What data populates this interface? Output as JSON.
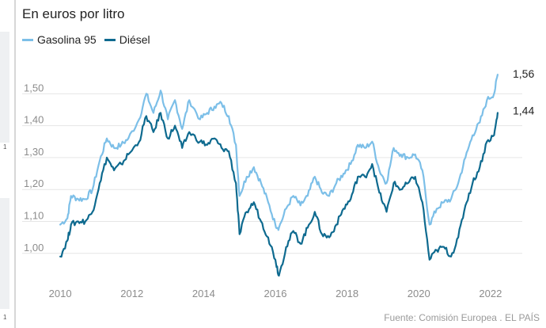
{
  "title": "En euros por litro",
  "source": "Fuente: Comisión Europea . EL PAÍS",
  "side_marks": [
    "1",
    "1"
  ],
  "chart_data": {
    "type": "line",
    "title": "En euros por litro",
    "xlabel": "",
    "ylabel": "",
    "x_ticks": [
      "2010",
      "2012",
      "2014",
      "2016",
      "2018",
      "2020",
      "2022"
    ],
    "y_ticks": [
      "1,00",
      "1,10",
      "1,20",
      "1,30",
      "1,40",
      "1,50"
    ],
    "ylim": [
      0.92,
      1.62
    ],
    "xlim": [
      2009.6,
      2022.4
    ],
    "grid": "horizontal",
    "legend": "top-left",
    "series": [
      {
        "name": "Gasolina 95",
        "color": "#7cbfe8",
        "end_label": "1,56",
        "points": [
          [
            2010.0,
            1.09
          ],
          [
            2010.2,
            1.11
          ],
          [
            2010.3,
            1.18
          ],
          [
            2010.5,
            1.17
          ],
          [
            2010.7,
            1.17
          ],
          [
            2010.9,
            1.2
          ],
          [
            2011.1,
            1.29
          ],
          [
            2011.3,
            1.36
          ],
          [
            2011.5,
            1.33
          ],
          [
            2011.7,
            1.34
          ],
          [
            2011.9,
            1.36
          ],
          [
            2012.2,
            1.42
          ],
          [
            2012.4,
            1.5
          ],
          [
            2012.6,
            1.44
          ],
          [
            2012.8,
            1.51
          ],
          [
            2013.0,
            1.42
          ],
          [
            2013.2,
            1.48
          ],
          [
            2013.4,
            1.39
          ],
          [
            2013.6,
            1.48
          ],
          [
            2013.9,
            1.42
          ],
          [
            2014.1,
            1.44
          ],
          [
            2014.3,
            1.46
          ],
          [
            2014.5,
            1.47
          ],
          [
            2014.7,
            1.43
          ],
          [
            2014.9,
            1.34
          ],
          [
            2015.0,
            1.18
          ],
          [
            2015.2,
            1.24
          ],
          [
            2015.4,
            1.27
          ],
          [
            2015.6,
            1.22
          ],
          [
            2015.8,
            1.16
          ],
          [
            2016.0,
            1.09
          ],
          [
            2016.1,
            1.08
          ],
          [
            2016.3,
            1.14
          ],
          [
            2016.5,
            1.18
          ],
          [
            2016.7,
            1.15
          ],
          [
            2016.9,
            1.18
          ],
          [
            2017.1,
            1.24
          ],
          [
            2017.3,
            1.19
          ],
          [
            2017.5,
            1.18
          ],
          [
            2017.7,
            1.22
          ],
          [
            2017.9,
            1.25
          ],
          [
            2018.1,
            1.28
          ],
          [
            2018.3,
            1.34
          ],
          [
            2018.5,
            1.33
          ],
          [
            2018.7,
            1.35
          ],
          [
            2018.9,
            1.26
          ],
          [
            2019.1,
            1.22
          ],
          [
            2019.3,
            1.33
          ],
          [
            2019.5,
            1.31
          ],
          [
            2019.7,
            1.3
          ],
          [
            2019.9,
            1.31
          ],
          [
            2020.1,
            1.26
          ],
          [
            2020.3,
            1.09
          ],
          [
            2020.5,
            1.14
          ],
          [
            2020.7,
            1.16
          ],
          [
            2020.9,
            1.17
          ],
          [
            2021.1,
            1.22
          ],
          [
            2021.3,
            1.3
          ],
          [
            2021.5,
            1.37
          ],
          [
            2021.7,
            1.41
          ],
          [
            2021.9,
            1.48
          ],
          [
            2022.1,
            1.5
          ],
          [
            2022.2,
            1.56
          ]
        ]
      },
      {
        "name": "Diésel",
        "color": "#0e6a8f",
        "end_label": "1,44",
        "points": [
          [
            2010.0,
            0.99
          ],
          [
            2010.2,
            1.04
          ],
          [
            2010.3,
            1.09
          ],
          [
            2010.5,
            1.1
          ],
          [
            2010.7,
            1.1
          ],
          [
            2010.9,
            1.13
          ],
          [
            2011.1,
            1.22
          ],
          [
            2011.3,
            1.3
          ],
          [
            2011.5,
            1.26
          ],
          [
            2011.7,
            1.28
          ],
          [
            2011.9,
            1.31
          ],
          [
            2012.2,
            1.35
          ],
          [
            2012.4,
            1.43
          ],
          [
            2012.6,
            1.38
          ],
          [
            2012.8,
            1.44
          ],
          [
            2013.0,
            1.36
          ],
          [
            2013.2,
            1.4
          ],
          [
            2013.4,
            1.33
          ],
          [
            2013.6,
            1.38
          ],
          [
            2013.9,
            1.35
          ],
          [
            2014.1,
            1.34
          ],
          [
            2014.3,
            1.36
          ],
          [
            2014.5,
            1.33
          ],
          [
            2014.7,
            1.32
          ],
          [
            2014.9,
            1.22
          ],
          [
            2015.0,
            1.06
          ],
          [
            2015.2,
            1.13
          ],
          [
            2015.4,
            1.16
          ],
          [
            2015.6,
            1.1
          ],
          [
            2015.8,
            1.05
          ],
          [
            2016.0,
            0.98
          ],
          [
            2016.1,
            0.93
          ],
          [
            2016.3,
            1.02
          ],
          [
            2016.5,
            1.07
          ],
          [
            2016.7,
            1.03
          ],
          [
            2016.9,
            1.08
          ],
          [
            2017.1,
            1.13
          ],
          [
            2017.3,
            1.06
          ],
          [
            2017.5,
            1.05
          ],
          [
            2017.7,
            1.09
          ],
          [
            2017.9,
            1.14
          ],
          [
            2018.1,
            1.17
          ],
          [
            2018.3,
            1.24
          ],
          [
            2018.5,
            1.24
          ],
          [
            2018.7,
            1.28
          ],
          [
            2018.9,
            1.19
          ],
          [
            2019.1,
            1.13
          ],
          [
            2019.3,
            1.22
          ],
          [
            2019.5,
            1.2
          ],
          [
            2019.7,
            1.22
          ],
          [
            2019.9,
            1.24
          ],
          [
            2020.1,
            1.16
          ],
          [
            2020.3,
            0.98
          ],
          [
            2020.5,
            1.01
          ],
          [
            2020.7,
            1.02
          ],
          [
            2020.9,
            0.99
          ],
          [
            2021.1,
            1.05
          ],
          [
            2021.3,
            1.15
          ],
          [
            2021.5,
            1.22
          ],
          [
            2021.7,
            1.27
          ],
          [
            2021.9,
            1.35
          ],
          [
            2022.1,
            1.37
          ],
          [
            2022.2,
            1.44
          ]
        ]
      }
    ]
  }
}
